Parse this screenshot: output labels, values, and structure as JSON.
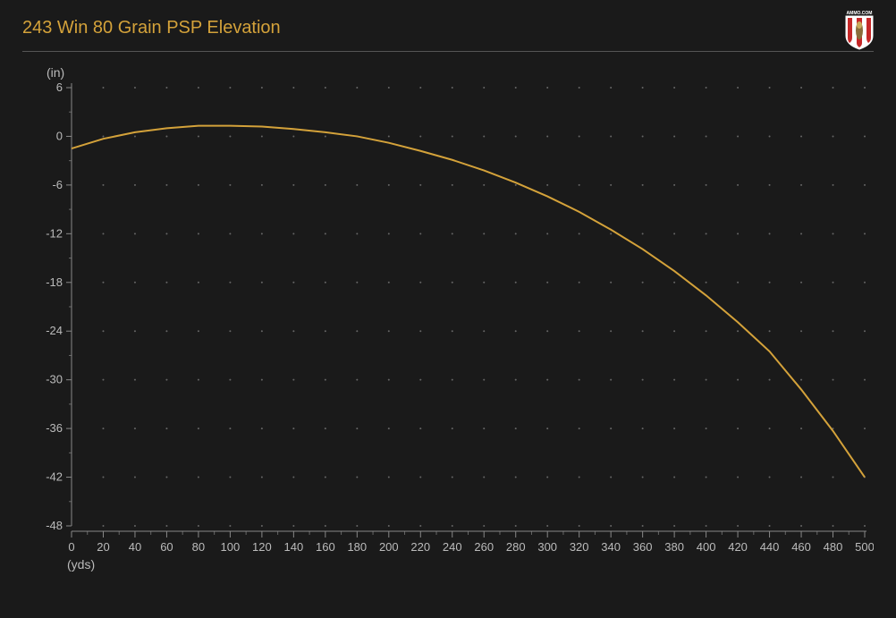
{
  "chart": {
    "type": "line",
    "title": "243 Win 80 Grain PSP Elevation",
    "title_color": "#d4a23a",
    "title_fontsize": 20,
    "background_color": "#1a1a1a",
    "grid_dot_color": "#666666",
    "axis_color": "#888888",
    "text_color": "#bbbbbb",
    "y_unit_label": "(in)",
    "x_unit_label": "(yds)",
    "xlim": [
      0,
      500
    ],
    "ylim": [
      -48,
      6
    ],
    "x_tick_step": 20,
    "y_tick_step": 6,
    "x_ticks": [
      0,
      20,
      40,
      60,
      80,
      100,
      120,
      140,
      160,
      180,
      200,
      220,
      240,
      260,
      280,
      300,
      320,
      340,
      360,
      380,
      400,
      420,
      440,
      460,
      480,
      500
    ],
    "y_ticks": [
      6,
      0,
      -6,
      -12,
      -18,
      -24,
      -30,
      -36,
      -42,
      -48
    ],
    "series": {
      "color": "#d4a23a",
      "line_width": 2,
      "x": [
        0,
        20,
        40,
        60,
        80,
        100,
        120,
        140,
        160,
        180,
        200,
        220,
        240,
        260,
        280,
        300,
        320,
        340,
        360,
        380,
        400,
        420,
        440,
        460,
        480,
        500
      ],
      "y": [
        -1.5,
        -0.3,
        0.5,
        1.0,
        1.3,
        1.3,
        1.2,
        0.9,
        0.5,
        0.0,
        -0.8,
        -1.8,
        -2.9,
        -4.2,
        -5.7,
        -7.4,
        -9.3,
        -11.5,
        -13.9,
        -16.6,
        -19.6,
        -22.9,
        -26.5,
        -31.2,
        -36.3,
        -42.0
      ]
    }
  },
  "logo": {
    "text": "AMMO.COM",
    "shield_stripes": [
      "#c62828",
      "#ffffff",
      "#c62828",
      "#ffffff",
      "#c62828"
    ],
    "border_color": "#ffffff"
  }
}
